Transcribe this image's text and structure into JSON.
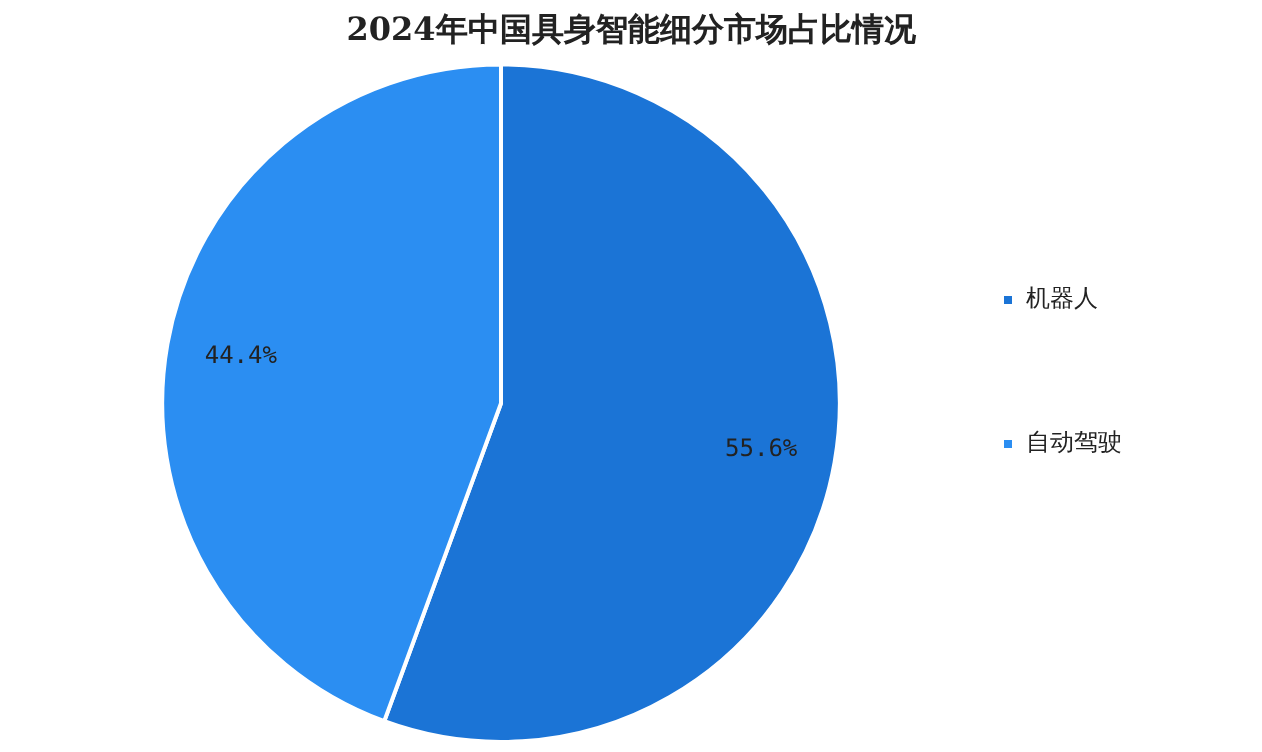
{
  "chart_data": {
    "type": "pie",
    "title": "2024年中国具身智能细分市场占比情况",
    "categories": [
      "机器人",
      "自动驾驶"
    ],
    "values": [
      55.6,
      44.4
    ],
    "value_labels": [
      "55.6%",
      "44.4%"
    ],
    "colors": [
      "#1b74d6",
      "#2b8ef2"
    ],
    "legend": "right"
  }
}
